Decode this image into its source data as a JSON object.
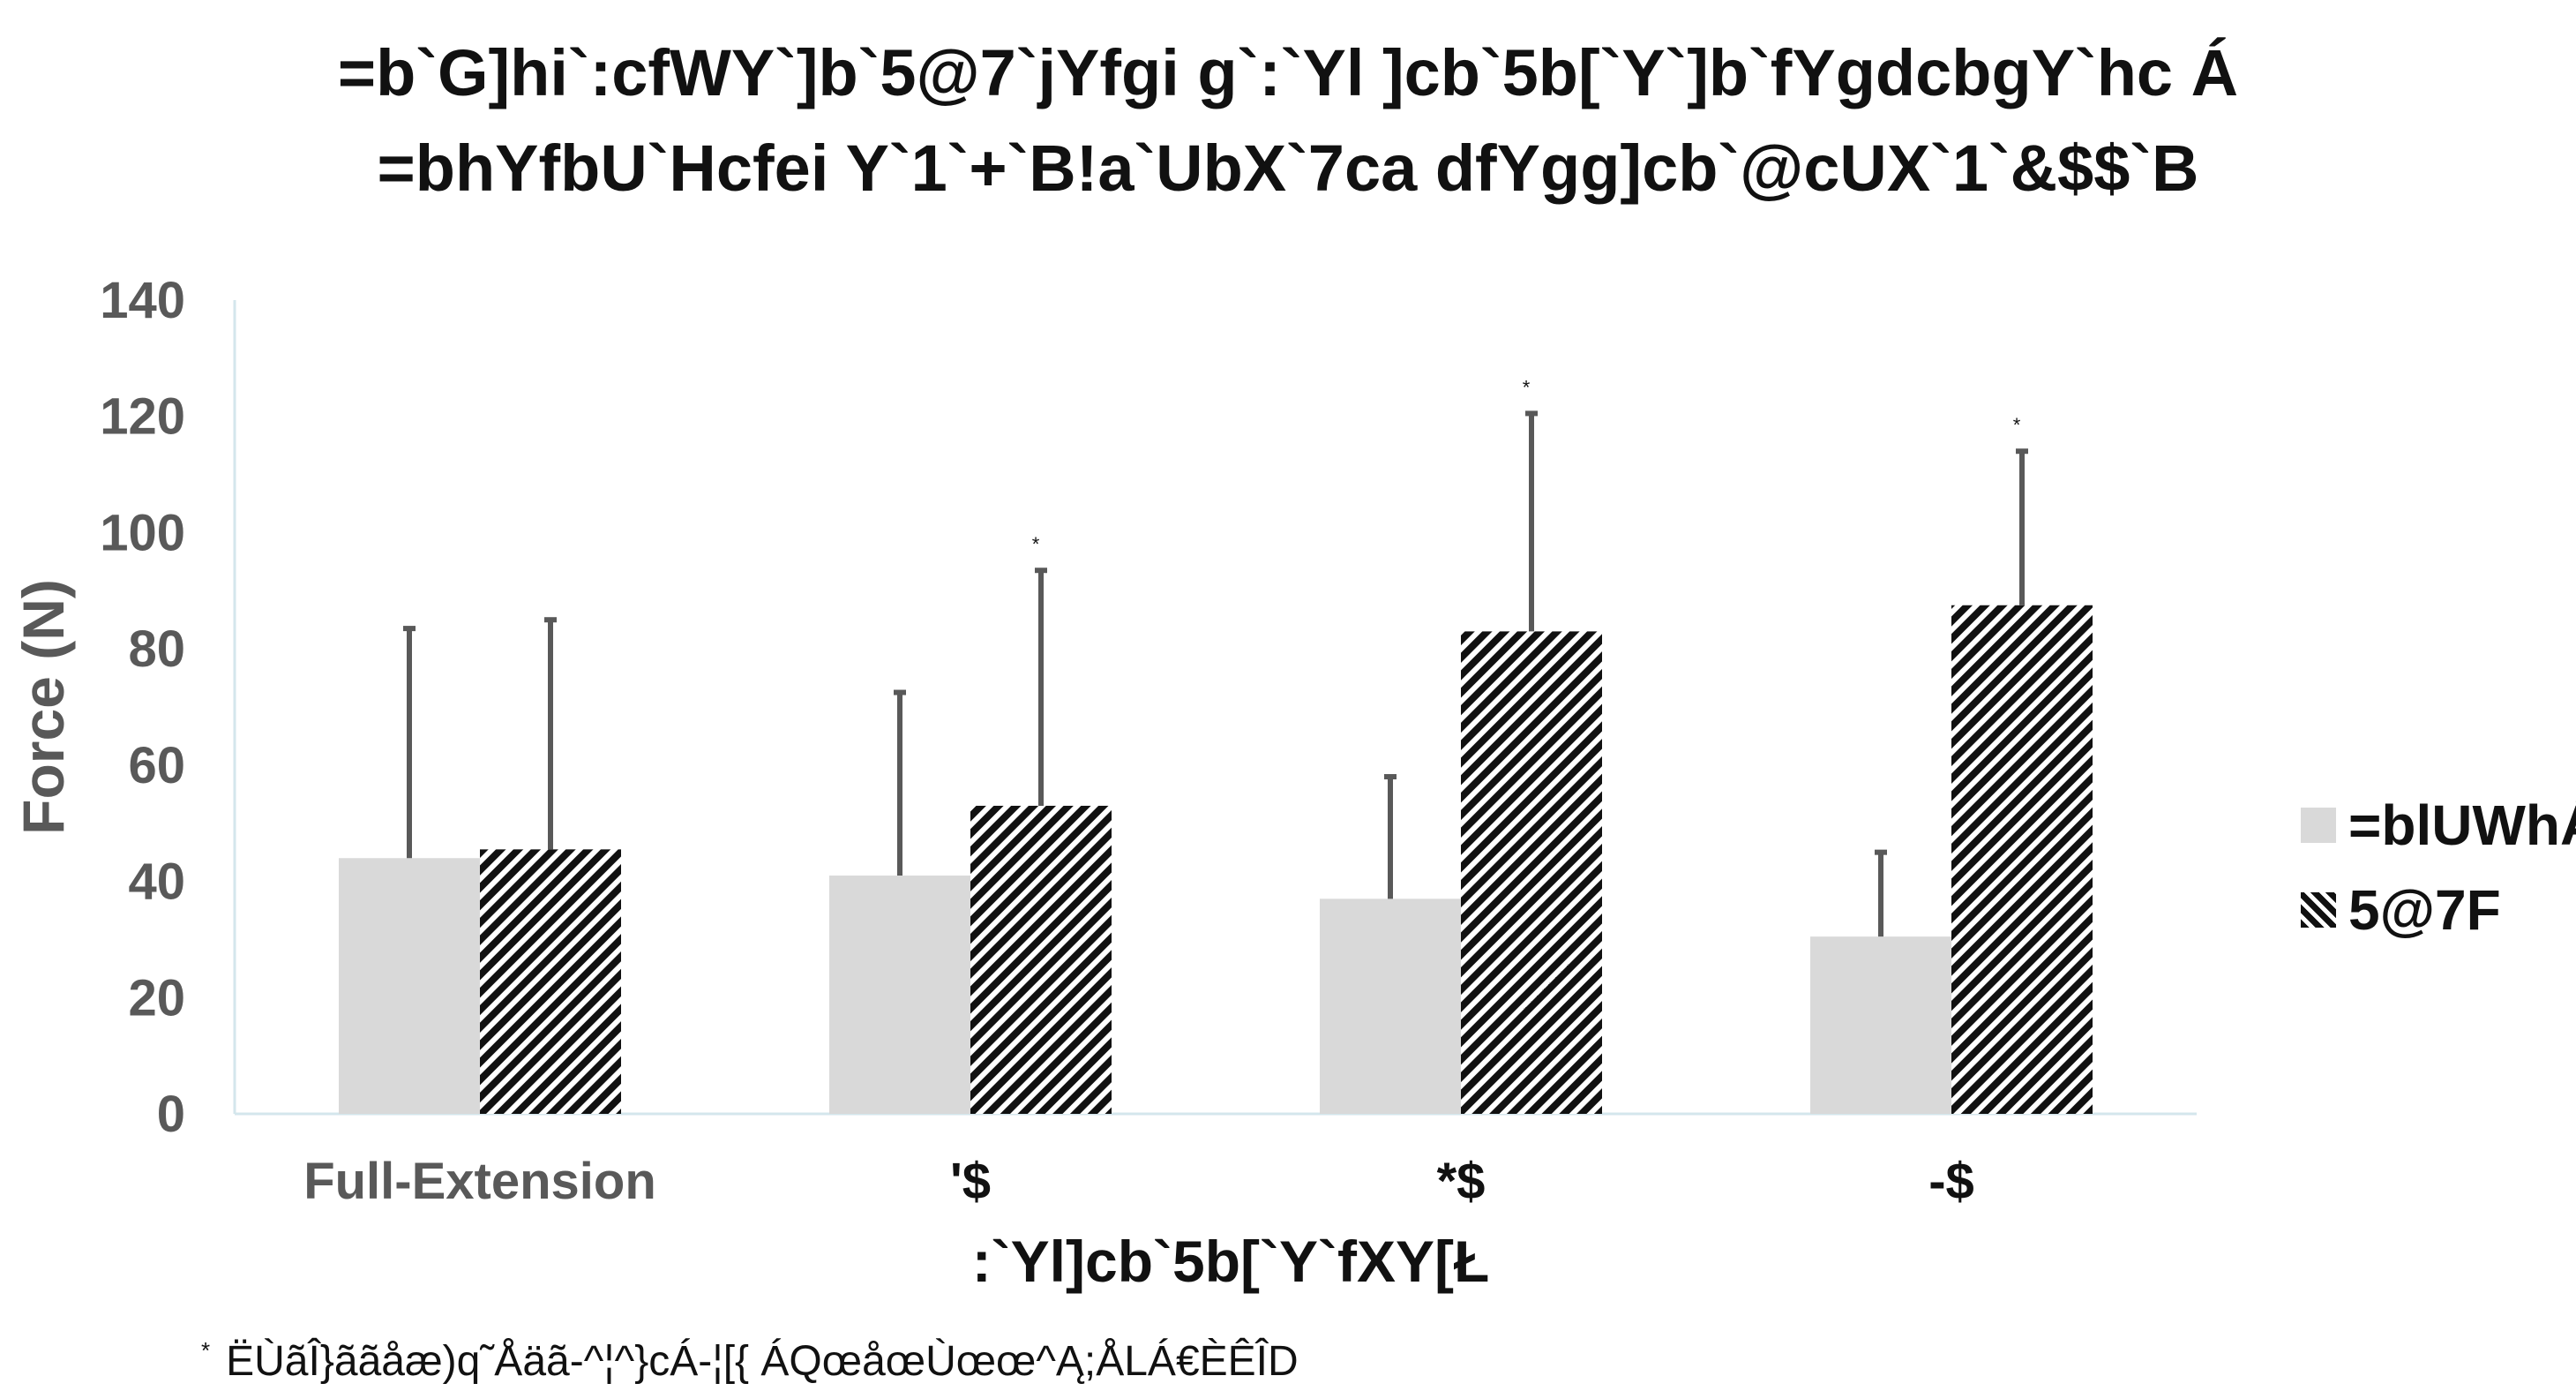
{
  "chart_data": {
    "type": "bar",
    "title": "=b`G]hi`:cfWY`]b`5@7`jYfgi g`:`Yl ]cb`5b[`Y`]b`fYgdcbgY`hc Á",
    "subtitle": "=bhYfbU`Hcfei Y`1`+`B!a`UbX`7ca dfYgg]cb`@cUX`1`&$$`B",
    "xlabel": ":`Yl]cb`5b[`Y`fXY[Ł",
    "ylabel": "Force (N)",
    "ylim": [
      0,
      140
    ],
    "yticks": [
      0,
      20,
      40,
      60,
      80,
      100,
      120,
      140
    ],
    "categories": [
      "Full-Extension",
      "'$",
      "*$",
      "-$"
    ],
    "series": [
      {
        "name": "=blUWhÁ",
        "values": [
          44,
          41,
          37,
          30.5
        ],
        "error": [
          39.5,
          31.5,
          21,
          14.5
        ],
        "color": "#d9d9d9",
        "pattern": "solid"
      },
      {
        "name": "5@7F",
        "values": [
          45.5,
          53,
          83,
          87.5
        ],
        "error": [
          39.5,
          40.5,
          37.5,
          26.5
        ],
        "color": "#111111",
        "pattern": "diagonal-hatch"
      }
    ],
    "annotations": [
      {
        "category": "'$",
        "text": "*"
      },
      {
        "category": "*$",
        "text": "*"
      },
      {
        "category": "-$",
        "text": "*"
      }
    ],
    "grid": false,
    "legend_position": "right",
    "footnote_marker": "*",
    "footnote": "ËÙãÎ}ããåæ)q˜Åäã-^¦^}cÁ-¦[{ ÁQœåœÙœœ^Ą;ÅLÁ€ÈÊÎD"
  }
}
